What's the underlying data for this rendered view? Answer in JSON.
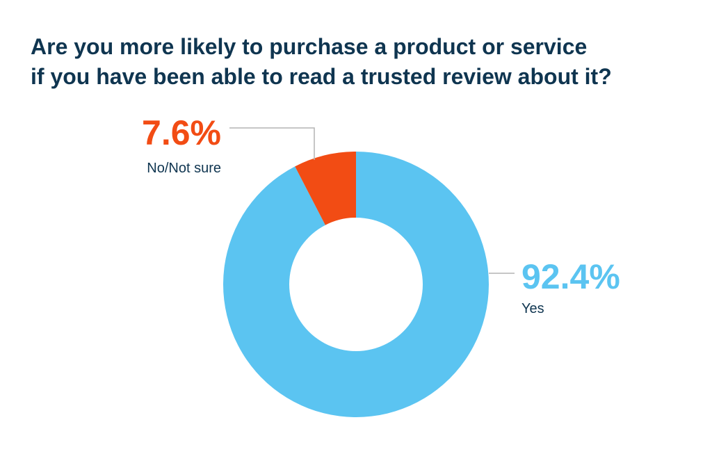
{
  "title": {
    "line1": "Are you more likely to purchase a product or service",
    "line2": "if you have been able to read a trusted review about it?"
  },
  "chart_data": {
    "type": "pie",
    "donut": true,
    "title": "Are you more likely to purchase a product or service if you have been able to read a trusted review about it?",
    "categories": [
      "Yes",
      "No/Not sure"
    ],
    "values": [
      92.4,
      7.6
    ],
    "value_labels": [
      "92.4%",
      "7.6%"
    ],
    "colors": [
      "#5bc4f1",
      "#f24c14"
    ],
    "text_color": "#0f3550",
    "leader_line_color": "#b3b3b3",
    "start_angle": "12 o'clock",
    "direction": "counter-clockwise from No/Not sure; Yes fills the rest"
  }
}
